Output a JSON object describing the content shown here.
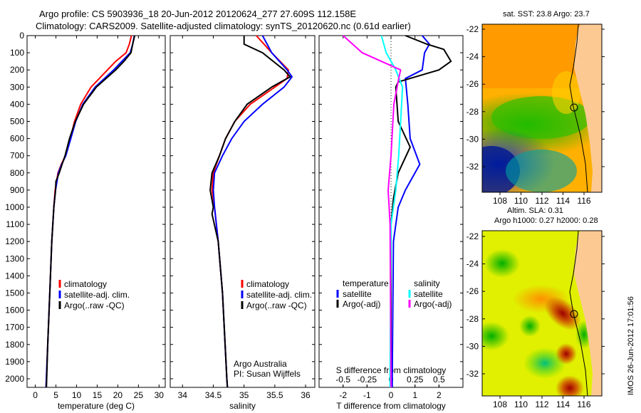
{
  "title_line1": "Argo profile: CS 5903936_18 20-Jun-2012 20120624_277 27.609S 112.158E",
  "title_line2": "Climatology: CARS2009. Satellite-adjusted climatology: synTS_20120620.nc (0.61d earlier)",
  "colors": {
    "climatology": "#ff0000",
    "satellite": "#0000ff",
    "argo": "#000000",
    "sat_salinity": "#00ffff",
    "argo_salinity": "#ff00ff",
    "land": "#fcc993"
  },
  "chart_data": [
    {
      "type": "line",
      "id": "temp",
      "xlabel": "temperature (deg C)",
      "ylabel": "",
      "xlim": [
        -2,
        31.5
      ],
      "ylim": [
        2050,
        0
      ],
      "xticks": [
        0,
        5,
        10,
        15,
        20,
        25,
        30
      ],
      "yticks": [
        0,
        100,
        200,
        300,
        400,
        500,
        600,
        700,
        800,
        900,
        1000,
        1100,
        1200,
        1300,
        1400,
        1500,
        1600,
        1700,
        1800,
        1900,
        2000
      ],
      "legend": [
        "climatology",
        "satellite-adj. clim.",
        "Argo(..raw -QC)"
      ],
      "series": [
        {
          "name": "climatology",
          "color": "#ff0000",
          "depth": [
            0,
            50,
            100,
            150,
            200,
            300,
            400,
            500,
            600,
            700,
            750,
            800,
            900,
            1000,
            1200,
            1500,
            1800,
            2050
          ],
          "values": [
            23.3,
            22.8,
            22,
            19.5,
            17.5,
            13.5,
            11,
            9.5,
            8.5,
            7.3,
            6.3,
            5.5,
            4.8,
            4.5,
            4,
            3.5,
            3,
            2.6
          ]
        },
        {
          "name": "satellite-adj. clim.",
          "color": "#0000ff",
          "depth": [
            0,
            50,
            100,
            150,
            200,
            300,
            400,
            500,
            600,
            700,
            750,
            800,
            900,
            1000,
            1200,
            1500,
            1800,
            2050
          ],
          "values": [
            24,
            23.6,
            23,
            21,
            19,
            14.5,
            11.5,
            9.8,
            8.6,
            7.4,
            6.4,
            5.6,
            4.9,
            4.5,
            4,
            3.5,
            3,
            2.6
          ]
        },
        {
          "name": "Argo(..raw -QC)",
          "color": "#000000",
          "depth": [
            0,
            50,
            100,
            150,
            200,
            300,
            400,
            500,
            600,
            700,
            750,
            800,
            850,
            900,
            1000,
            1200,
            1500,
            1800,
            2050
          ],
          "values": [
            24.1,
            23.6,
            23.2,
            21.5,
            19.5,
            14.8,
            11.7,
            9.7,
            8.3,
            7.2,
            6.5,
            5.8,
            5,
            4.9,
            4.5,
            4,
            3.5,
            3,
            2.7
          ]
        }
      ]
    },
    {
      "type": "line",
      "id": "sal",
      "xlabel": "salinity",
      "xlim": [
        33.8,
        36.15
      ],
      "ylim": [
        2050,
        0
      ],
      "xticks": [
        34,
        34.5,
        35,
        35.5,
        36
      ],
      "legend": [
        "climatology",
        "satellite-adj. clim.",
        "Argo(..raw -QC)"
      ],
      "annotation": [
        "Argo Australia",
        "PI: Susan Wijffels"
      ],
      "series": [
        {
          "name": "climatology",
          "color": "#ff0000",
          "depth": [
            0,
            100,
            200,
            250,
            300,
            400,
            500,
            600,
            700,
            800,
            900,
            1000,
            1200,
            1500,
            2000,
            2050
          ],
          "values": [
            35.2,
            35.45,
            35.72,
            35.7,
            35.5,
            35.1,
            34.85,
            34.7,
            34.6,
            34.5,
            34.48,
            34.52,
            34.58,
            34.65,
            34.72,
            34.73
          ]
        },
        {
          "name": "satellite-adj. clim.",
          "color": "#0000ff",
          "depth": [
            0,
            100,
            200,
            240,
            300,
            400,
            500,
            600,
            700,
            800,
            900,
            1000,
            1200,
            1500,
            2000,
            2050
          ],
          "values": [
            35.3,
            35.45,
            35.7,
            35.78,
            35.65,
            35.3,
            35,
            34.8,
            34.65,
            34.52,
            34.5,
            34.52,
            34.58,
            34.65,
            34.72,
            34.73
          ]
        },
        {
          "name": "Argo(..raw -QC)",
          "color": "#000000",
          "depth": [
            0,
            50,
            100,
            200,
            240,
            300,
            400,
            500,
            600,
            700,
            800,
            900,
            1000,
            1040,
            1200,
            1500,
            2000,
            2050
          ],
          "values": [
            35,
            35,
            35.3,
            35.65,
            35.75,
            35.45,
            35.05,
            34.85,
            34.7,
            34.6,
            34.48,
            34.45,
            34.5,
            34.48,
            34.58,
            34.65,
            34.72,
            34.73
          ]
        }
      ]
    },
    {
      "type": "line",
      "id": "diff",
      "xlabel": "T difference from climatology",
      "xlabel2": "S difference from climatology",
      "xlim": [
        -3,
        3
      ],
      "xlim2": [
        -0.75,
        0.75
      ],
      "ylim": [
        2050,
        0
      ],
      "xticks": [
        -2,
        -1,
        0,
        1,
        2
      ],
      "xticks2": [
        -0.5,
        -0.25,
        0,
        0.25,
        0.5
      ],
      "xticklabels2": [
        "-0.5",
        "-0.25",
        "0",
        "0.25",
        "0.5"
      ],
      "legend_temperature": {
        "title": "temperature",
        "items": [
          "satellite",
          "Argo(-adj)"
        ]
      },
      "legend_salinity": {
        "title": "salinity",
        "items": [
          "satellite",
          "Argo(-adj)"
        ]
      },
      "series": [
        {
          "name": "T satellite",
          "axis": "T",
          "color": "#0000ff",
          "depth": [
            0,
            50,
            100,
            200,
            250,
            400,
            600,
            750,
            900,
            1000,
            1200,
            2000,
            2050
          ],
          "values": [
            1.3,
            1.6,
            1.4,
            1.3,
            0.6,
            0.7,
            0.8,
            1.2,
            0.6,
            0.3,
            0.1,
            0.05,
            0.05
          ]
        },
        {
          "name": "T Argo(-adj)",
          "axis": "T",
          "color": "#000000",
          "depth": [
            0,
            50,
            80,
            150,
            200,
            270,
            300,
            500,
            650,
            800,
            950,
            1100,
            2000,
            2050
          ],
          "values": [
            0.6,
            1.5,
            2.2,
            2.5,
            2.0,
            0.3,
            0.2,
            0.3,
            0.8,
            0.3,
            0.1,
            0,
            0,
            0
          ]
        },
        {
          "name": "S satellite",
          "axis": "S",
          "color": "#00ffff",
          "depth": [
            0,
            100,
            200,
            300,
            500,
            700,
            900,
            1100,
            2000,
            2050
          ],
          "values": [
            -0.1,
            -0.05,
            0.05,
            0.12,
            0.1,
            0.08,
            0.05,
            0,
            -0.01,
            -0.01
          ]
        },
        {
          "name": "S Argo(-adj)",
          "axis": "S",
          "color": "#ff00ff",
          "depth": [
            0,
            50,
            100,
            200,
            250,
            400,
            700,
            900,
            1100,
            2000,
            2050
          ],
          "values": [
            -0.5,
            -0.4,
            -0.3,
            0.1,
            0.08,
            0.03,
            0,
            -0.03,
            -0.01,
            0,
            0
          ]
        }
      ]
    }
  ],
  "maps": {
    "sst": {
      "title": "sat. SST: 23.8  Argo: 23.7",
      "lat_ticks": [
        "-22",
        "-24",
        "-26",
        "-28",
        "-30",
        "-32"
      ],
      "lon_ticks": [
        "108",
        "110",
        "112",
        "114",
        "116"
      ]
    },
    "sla": {
      "title1": "Altim. SLA: 0.31",
      "title2": "Argo h1000: 0.27 h2000: 0.28",
      "lat_ticks": [
        "-22",
        "-24",
        "-26",
        "-28",
        "-30",
        "-32"
      ],
      "lon_ticks": [
        "108",
        "110",
        "112",
        "114",
        "116"
      ]
    },
    "profile_location": {
      "lon": 112.158,
      "lat": -27.609
    }
  },
  "stamp": "IMOS 26-Jun-2012 17:01:56"
}
